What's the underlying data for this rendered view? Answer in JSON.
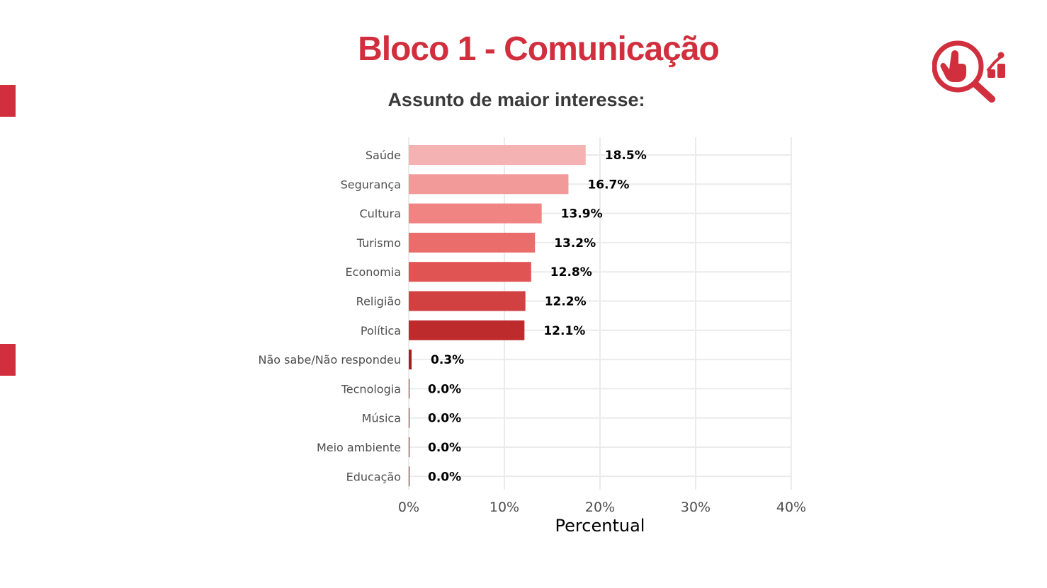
{
  "page": {
    "title": "Bloco 1 - Comunicação",
    "accent_color": "#d12f3d",
    "logo_icon": "search-analytics-icon"
  },
  "chart_data": {
    "type": "bar",
    "orientation": "horizontal",
    "title": "Assunto de maior interesse:",
    "xlabel": "Percentual",
    "ylabel": "",
    "xlim": [
      0,
      40
    ],
    "x_ticks": [
      "0%",
      "10%",
      "20%",
      "30%",
      "40%"
    ],
    "grid": true,
    "categories": [
      "Saúde",
      "Segurança",
      "Cultura",
      "Turismo",
      "Economia",
      "Religião",
      "Política",
      "Não sabe/Não respondeu",
      "Tecnologia",
      "Música",
      "Meio ambiente",
      "Educação"
    ],
    "values": [
      18.5,
      16.7,
      13.9,
      13.2,
      12.8,
      12.2,
      12.1,
      0.3,
      0.0,
      0.0,
      0.0,
      0.0
    ],
    "data_labels": [
      "18.5%",
      "16.7%",
      "13.9%",
      "13.2%",
      "12.8%",
      "12.2%",
      "12.1%",
      "0.3%",
      "0.0%",
      "0.0%",
      "0.0%",
      "0.0%"
    ],
    "colors": [
      "#f5b2b3",
      "#f29a99",
      "#ef8482",
      "#ea6d6b",
      "#e05454",
      "#d14142",
      "#bd2b2d",
      "#a61f20",
      "#951819",
      "#8a1516",
      "#7e1213",
      "#720f10"
    ]
  }
}
